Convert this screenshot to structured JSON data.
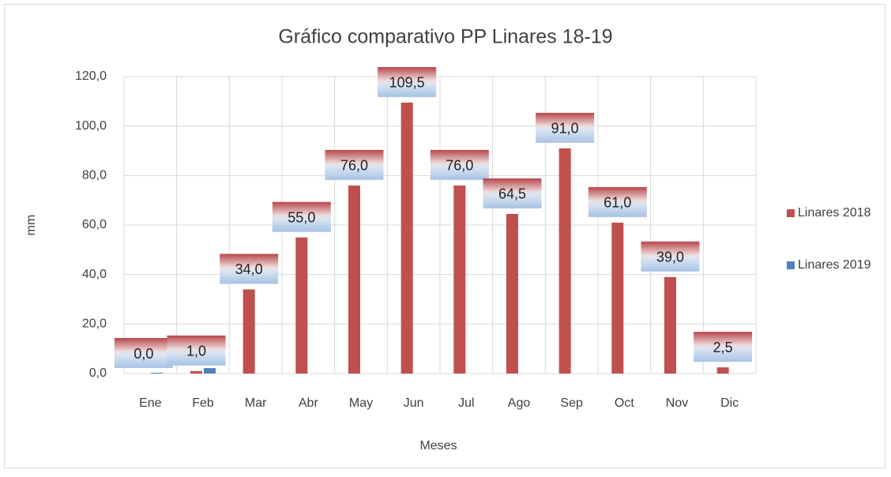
{
  "chart_data": {
    "type": "bar",
    "title": "Gráfico comparativo PP Linares 18-19",
    "x_label": "Meses",
    "y_label": "mm",
    "categories": [
      "Ene",
      "Feb",
      "Mar",
      "Abr",
      "May",
      "Jun",
      "Jul",
      "Ago",
      "Sep",
      "Oct",
      "Nov",
      "Dic"
    ],
    "series": [
      {
        "name": "Linares 2018",
        "color": "#c0504d",
        "values": [
          0,
          1,
          34,
          55,
          76,
          109.5,
          76,
          64.5,
          91,
          61,
          39,
          2.5
        ],
        "value_labels": [
          "0,0",
          "1,0",
          "34,0",
          "55,0",
          "76,0",
          "109,5",
          "76,0",
          "64,5",
          "91,0",
          "61,0",
          "39,0",
          "2,5"
        ]
      },
      {
        "name": "Linares 2019",
        "color": "#4f81bd",
        "values": [
          0.3,
          2.2,
          null,
          null,
          null,
          null,
          null,
          null,
          null,
          null,
          null,
          null
        ]
      }
    ],
    "ylim": [
      0,
      120
    ],
    "yticks": [
      {
        "value": 0,
        "label": "0,0"
      },
      {
        "value": 20,
        "label": "20,0"
      },
      {
        "value": 40,
        "label": "40,0"
      },
      {
        "value": 60,
        "label": "60,0"
      },
      {
        "value": 80,
        "label": "80,0"
      },
      {
        "value": 100,
        "label": "100,0"
      },
      {
        "value": 120,
        "label": "120,0"
      }
    ],
    "grid": true,
    "legend": "right"
  }
}
